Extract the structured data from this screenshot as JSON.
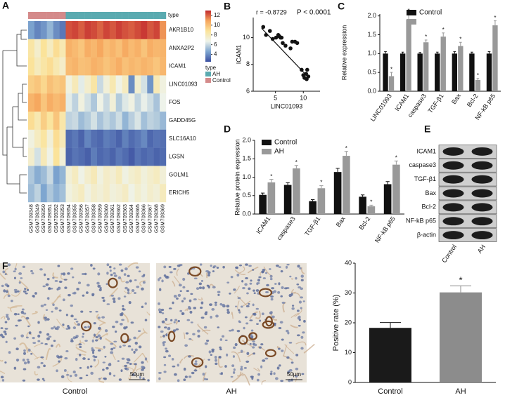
{
  "chart_data": [
    {
      "type": "heatmap",
      "panel": "A",
      "type_label": "type",
      "rows": [
        "AKR1B10",
        "ANXA2P2",
        "ICAM1",
        "LINC01093",
        "FOS",
        "GADD45G",
        "SLC16A10",
        "LGSN",
        "GOLM1",
        "ERICH5"
      ],
      "columns": [
        "GSM709348",
        "GSM709349",
        "GSM709350",
        "GSM709351",
        "GSM709352",
        "GSM709353",
        "GSM709354",
        "GSM709355",
        "GSM709356",
        "GSM709357",
        "GSM709358",
        "GSM709359",
        "GSM709360",
        "GSM709361",
        "GSM709362",
        "GSM709363",
        "GSM709364",
        "GSM709365",
        "GSM709366",
        "GSM709367",
        "GSM709368",
        "GSM709369"
      ],
      "column_groups": [
        "Control",
        "Control",
        "Control",
        "Control",
        "Control",
        "Control",
        "AH",
        "AH",
        "AH",
        "AH",
        "AH",
        "AH",
        "AH",
        "AH",
        "AH",
        "AH",
        "AH",
        "AH",
        "AH",
        "AH",
        "AH",
        "AH"
      ],
      "values": [
        [
          4.5,
          3.8,
          4.2,
          5.0,
          4.0,
          3.5,
          12.3,
          12.5,
          12.1,
          12.6,
          12.4,
          12.0,
          12.5,
          12.2,
          12.6,
          12.3,
          12.1,
          12.4,
          12.7,
          12.2,
          12.5,
          11.2
        ],
        [
          8.5,
          7.5,
          8.8,
          7.8,
          9.0,
          8.2,
          10.5,
          10.2,
          9.8,
          10.6,
          10.3,
          10.8,
          10.1,
          10.4,
          10.0,
          10.7,
          10.2,
          10.5,
          9.9,
          10.6,
          10.3,
          10.4
        ],
        [
          8.8,
          7.9,
          8.5,
          9.0,
          8.2,
          7.6,
          10.2,
          10.4,
          10.0,
          10.1,
          10.5,
          10.3,
          9.9,
          10.2,
          10.6,
          10.0,
          10.3,
          10.1,
          10.4,
          10.2,
          9.8,
          10.3
        ],
        [
          9.5,
          9.8,
          9.2,
          10.0,
          9.6,
          9.9,
          7.0,
          8.0,
          6.5,
          7.5,
          8.5,
          6.0,
          7.2,
          8.2,
          6.8,
          7.8,
          4.0,
          7.4,
          6.2,
          4.2,
          8.1,
          7.0
        ],
        [
          10.4,
          10.8,
          9.8,
          10.6,
          10.2,
          10.5,
          6.5,
          5.8,
          7.0,
          6.2,
          5.5,
          6.8,
          6.0,
          7.2,
          5.6,
          6.4,
          6.9,
          5.9,
          6.6,
          6.1,
          5.4,
          6.7
        ],
        [
          9.0,
          8.2,
          9.5,
          8.7,
          9.8,
          8.4,
          5.8,
          6.0,
          5.2,
          5.6,
          6.2,
          5.4,
          5.9,
          5.5,
          6.1,
          5.0,
          5.7,
          6.3,
          5.3,
          5.8,
          5.6,
          5.1
        ],
        [
          7.0,
          7.8,
          8.6,
          7.2,
          9.0,
          8.0,
          3.2,
          3.5,
          3.0,
          3.8,
          3.3,
          3.1,
          3.6,
          3.4,
          3.0,
          3.7,
          3.2,
          3.5,
          3.9,
          3.1,
          3.4,
          3.3
        ],
        [
          7.5,
          6.2,
          8.0,
          6.8,
          8.8,
          7.2,
          3.0,
          3.4,
          3.2,
          2.9,
          3.6,
          3.1,
          3.3,
          3.0,
          3.5,
          3.2,
          2.8,
          3.4,
          3.1,
          3.3,
          3.0,
          3.2
        ],
        [
          5.5,
          4.8,
          5.2,
          6.0,
          4.5,
          5.0,
          7.2,
          7.8,
          6.8,
          7.5,
          8.0,
          7.0,
          7.6,
          7.3,
          7.9,
          6.9,
          7.4,
          7.7,
          7.1,
          7.5,
          7.8,
          7.2
        ],
        [
          5.2,
          5.8,
          4.6,
          5.5,
          4.9,
          5.3,
          7.0,
          7.4,
          7.8,
          6.9,
          7.5,
          7.2,
          7.6,
          7.1,
          7.3,
          7.7,
          6.8,
          7.4,
          7.0,
          7.5,
          7.2,
          7.9
        ]
      ],
      "colorbar": {
        "lim": [
          2.5,
          13
        ],
        "ticks": [
          4,
          6,
          8,
          10,
          12
        ],
        "colors": [
          "#3b4fa0",
          "#7ea6d0",
          "#eef3ea",
          "#fbe39a",
          "#f6a55c",
          "#c1272d"
        ]
      },
      "legend": {
        "title": "type",
        "names": [
          "AH",
          "Control"
        ],
        "colors": [
          "#5aaab0",
          "#d48a8a"
        ]
      }
    },
    {
      "type": "scatter",
      "panel": "B",
      "annotations": [
        "r = -0.8729",
        "P < 0.0001"
      ],
      "xlabel": "LINC01093",
      "ylabel": "ICAM1",
      "x": [
        2.8,
        3.3,
        4.0,
        4.5,
        5.1,
        5.5,
        5.7,
        5.9,
        6.1,
        6.3,
        6.8,
        7.7,
        8.0,
        8.5,
        8.9,
        9.7,
        10.0,
        10.2,
        10.5,
        10.7,
        10.9,
        10.6
      ],
      "y": [
        10.8,
        10.2,
        10.5,
        9.9,
        10.0,
        10.2,
        10.1,
        10.0,
        10.0,
        9.6,
        9.4,
        9.2,
        9.7,
        9.7,
        9.6,
        7.6,
        7.2,
        7.0,
        7.3,
        7.6,
        7.1,
        6.9
      ],
      "fit": {
        "x": [
          2.5,
          11
        ],
        "y": [
          10.7,
          7.0
        ]
      },
      "xlim": [
        1,
        13
      ],
      "xticks": [
        5,
        10
      ],
      "ylim": [
        6,
        11.5
      ],
      "yticks": [
        6,
        8,
        10
      ],
      "color": "#111111"
    },
    {
      "type": "bar",
      "panel": "C",
      "ylabel": "Relative expression",
      "categories": [
        "LINC01093",
        "ICAM1",
        "caspase3",
        "TGF-β1",
        "Bax",
        "Bcl-2",
        "NF-kB p65"
      ],
      "series": [
        {
          "name": "Control",
          "color": "#111111",
          "values": [
            1,
            1,
            1,
            1,
            1,
            1,
            1
          ],
          "errors": [
            0.05,
            0.04,
            0.03,
            0.04,
            0.05,
            0.04,
            0.05
          ]
        },
        {
          "color": "#999999",
          "values": [
            0.4,
            1.9,
            1.3,
            1.45,
            1.2,
            0.3,
            1.75
          ],
          "errors": [
            0.1,
            0.15,
            0.06,
            0.1,
            0.1,
            0.04,
            0.12
          ],
          "significance": [
            "*",
            "*",
            "*",
            "*",
            "*",
            "*",
            "*"
          ]
        }
      ],
      "ylim": [
        0,
        2.05
      ],
      "yticks": [
        {
          "value": 0,
          "label": "0.0"
        },
        0.5,
        {
          "value": 1,
          "label": "1.0"
        },
        1.5,
        {
          "value": 2,
          "label": "2.0"
        }
      ]
    },
    {
      "type": "bar",
      "panel": "D",
      "ylabel": "Relative protein expression",
      "categories": [
        "ICAM1",
        "caspase3",
        "TGF-β1",
        "Bax",
        "Bcl-2",
        "NF-kB p65"
      ],
      "series": [
        {
          "name": "Control",
          "color": "#111111",
          "values": [
            0.52,
            0.79,
            0.35,
            1.14,
            0.47,
            0.81
          ],
          "errors": [
            0.05,
            0.06,
            0.04,
            0.1,
            0.05,
            0.07
          ]
        },
        {
          "name": "AH",
          "color": "#999999",
          "values": [
            0.86,
            1.24,
            0.7,
            1.58,
            0.21,
            1.34
          ],
          "errors": [
            0.08,
            0.08,
            0.07,
            0.12,
            0.03,
            0.1
          ],
          "significance": [
            "*",
            "*",
            "*",
            "*",
            "*",
            "*"
          ]
        }
      ],
      "ylim": [
        0,
        2.0
      ],
      "yticks": [
        {
          "value": 0,
          "label": "0.0"
        },
        0.5,
        {
          "value": 1,
          "label": "1.0"
        },
        1.5,
        {
          "value": 2,
          "label": "2.0"
        }
      ]
    },
    {
      "type": "blot",
      "panel": "E",
      "rows": [
        "ICAM1",
        "caspase3",
        "TGF-β1",
        "Bax",
        "Bcl-2",
        "NF-kB p65",
        "β-actin"
      ],
      "lanes": [
        "Control",
        "AH"
      ]
    },
    {
      "type": "micrograph",
      "panel": "F",
      "labels": [
        "Control",
        "AH"
      ],
      "scale_bar": "50μm"
    },
    {
      "type": "bar",
      "ylabel": "Positive rate (%)",
      "categories": [
        "Control",
        "AH"
      ],
      "series": [
        {
          "colors": [
            "#1a1a1a",
            "#8c8c8c"
          ],
          "values": [
            18.3,
            30.2
          ],
          "errors": [
            1.8,
            2.2
          ]
        }
      ],
      "annotations": [
        {
          "text": "*",
          "category": "AH"
        }
      ],
      "ylim": [
        0,
        40
      ],
      "yticks": [
        0,
        10,
        20,
        30,
        40
      ]
    }
  ]
}
